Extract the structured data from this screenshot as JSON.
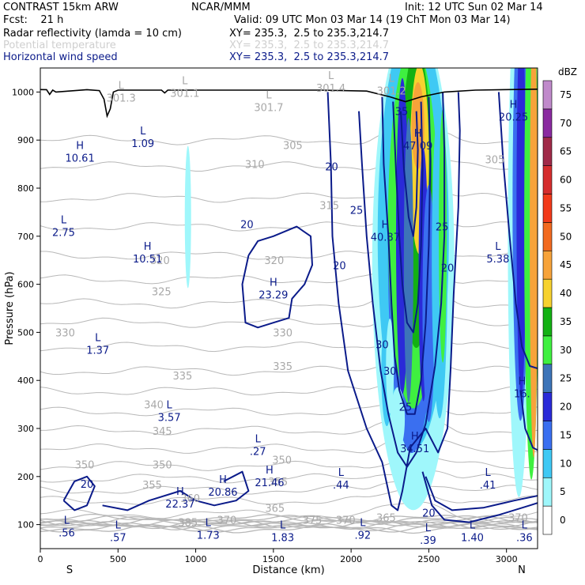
{
  "header": {
    "model": "CONTRAST 15km ARW",
    "org": "NCAR/MMM",
    "init": "Init: 12 UTC Sun 02 Mar 14",
    "fcst": "Fcst:    21 h",
    "valid": "Valid: 09 UTC Mon 03 Mar 14 (19 ChT Mon 03 Mar 14)",
    "field1": "Radar reflectivity (lamda = 10 cm)",
    "field1_xy": "XY= 235.3,  2.5 to 235.3,214.7",
    "field2": "Potential temperature",
    "field2_xy": "XY= 235.3,  2.5 to 235.3,214.7",
    "field3": "Horizontal wind speed",
    "field3_xy": "XY= 235.3,  2.5 to 235.3,214.7"
  },
  "colors": {
    "wind_contour": "#0b1b8a",
    "theta_contour": "#b8b8b8",
    "terrain": "#000000"
  },
  "chart_data": {
    "type": "cross-section",
    "xlabel": "Distance (km)",
    "ylabel": "Pressure (hPa)",
    "xlim": [
      0,
      3200
    ],
    "ylim": [
      1050,
      50
    ],
    "y_log_scale": false,
    "x_ticks": [
      0,
      500,
      1000,
      1500,
      2000,
      2500,
      3000
    ],
    "y_ticks": [
      100,
      200,
      300,
      400,
      500,
      600,
      700,
      800,
      900,
      1000
    ],
    "x_end_labels": {
      "left": "S",
      "right": "N"
    },
    "colorbar": {
      "unit": "dBZ",
      "levels": [
        0,
        5,
        10,
        15,
        20,
        25,
        30,
        35,
        40,
        45,
        50,
        55,
        60,
        65,
        70,
        75
      ],
      "colors": [
        "#ffffff",
        "#9ff7fb",
        "#3fc9f4",
        "#3a6ff0",
        "#2a2ad8",
        "#3d74b8",
        "#3ff040",
        "#13b113",
        "#f7d22f",
        "#f7a33a",
        "#f26a1f",
        "#f23a1a",
        "#d52d2d",
        "#a02a48",
        "#8a2aa0",
        "#c08acb"
      ]
    },
    "wind_speed_labels": [
      {
        "text": "20",
        "x": 300,
        "p": 185
      },
      {
        "text": "20",
        "x": 2500,
        "p": 125
      },
      {
        "text": "25",
        "x": 2350,
        "p": 345
      },
      {
        "text": "30",
        "x": 2250,
        "p": 420
      },
      {
        "text": "30",
        "x": 2200,
        "p": 475
      },
      {
        "text": "20",
        "x": 1925,
        "p": 640
      },
      {
        "text": "20",
        "x": 1330,
        "p": 725
      },
      {
        "text": "25",
        "x": 2035,
        "p": 755
      },
      {
        "text": "20",
        "x": 1875,
        "p": 845
      },
      {
        "text": "20",
        "x": 2620,
        "p": 635
      },
      {
        "text": "25",
        "x": 2585,
        "p": 720
      },
      {
        "text": "35",
        "x": 2325,
        "p": 960
      }
    ],
    "theta_labels": [
      {
        "text": "385",
        "x": 950,
        "p": 105
      },
      {
        "text": "370",
        "x": 1200,
        "p": 110
      },
      {
        "text": "375",
        "x": 1750,
        "p": 110
      },
      {
        "text": "370",
        "x": 1965,
        "p": 110
      },
      {
        "text": "365",
        "x": 2225,
        "p": 115
      },
      {
        "text": "370",
        "x": 3075,
        "p": 115
      },
      {
        "text": "365",
        "x": 1510,
        "p": 135
      },
      {
        "text": "360",
        "x": 965,
        "p": 155
      },
      {
        "text": "355",
        "x": 720,
        "p": 183
      },
      {
        "text": "355",
        "x": 1530,
        "p": 190
      },
      {
        "text": "350",
        "x": 285,
        "p": 225
      },
      {
        "text": "350",
        "x": 785,
        "p": 225
      },
      {
        "text": "350",
        "x": 1555,
        "p": 235
      },
      {
        "text": "345",
        "x": 785,
        "p": 295
      },
      {
        "text": "340",
        "x": 730,
        "p": 350
      },
      {
        "text": "335",
        "x": 915,
        "p": 410
      },
      {
        "text": "335",
        "x": 1560,
        "p": 430
      },
      {
        "text": "330",
        "x": 160,
        "p": 500
      },
      {
        "text": "330",
        "x": 1560,
        "p": 500
      },
      {
        "text": "325",
        "x": 780,
        "p": 585
      },
      {
        "text": "320",
        "x": 770,
        "p": 650
      },
      {
        "text": "320",
        "x": 1505,
        "p": 650
      },
      {
        "text": "315",
        "x": 1860,
        "p": 765
      },
      {
        "text": "310",
        "x": 1380,
        "p": 850
      },
      {
        "text": "305",
        "x": 1625,
        "p": 890
      },
      {
        "text": "305",
        "x": 2925,
        "p": 860
      }
    ],
    "extrema": [
      {
        "type": "L",
        "value": ".56",
        "x": 170,
        "p": 95
      },
      {
        "type": "L",
        "value": ".57",
        "x": 500,
        "p": 85
      },
      {
        "type": "L",
        "value": "1.73",
        "x": 1080,
        "p": 90
      },
      {
        "type": "L",
        "value": "1.83",
        "x": 1560,
        "p": 85
      },
      {
        "type": "L",
        "value": ".92",
        "x": 2075,
        "p": 90
      },
      {
        "type": "L",
        "value": ".39",
        "x": 2495,
        "p": 80
      },
      {
        "type": "L",
        "value": "1.40",
        "x": 2780,
        "p": 85
      },
      {
        "type": "L",
        "value": ".36",
        "x": 3115,
        "p": 85
      },
      {
        "type": "H",
        "value": "22.37",
        "x": 900,
        "p": 155
      },
      {
        "type": "H",
        "value": "20.86",
        "x": 1175,
        "p": 180
      },
      {
        "type": "H",
        "value": "21.46",
        "x": 1475,
        "p": 200
      },
      {
        "type": "L",
        "value": ".44",
        "x": 1935,
        "p": 195
      },
      {
        "type": "L",
        "value": ".41",
        "x": 2880,
        "p": 195
      },
      {
        "type": "H",
        "value": "34.51",
        "x": 2410,
        "p": 270
      },
      {
        "type": "L",
        "value": ".27",
        "x": 1400,
        "p": 265
      },
      {
        "type": "L",
        "value": "3.57",
        "x": 830,
        "p": 335
      },
      {
        "type": "H",
        "value": "16.",
        "x": 3100,
        "p": 385
      },
      {
        "type": "L",
        "value": "1.37",
        "x": 370,
        "p": 475
      },
      {
        "type": "H",
        "value": "23.29",
        "x": 1500,
        "p": 590
      },
      {
        "type": "H",
        "value": "10.51",
        "x": 690,
        "p": 665
      },
      {
        "type": "L",
        "value": "5.38",
        "x": 2945,
        "p": 665
      },
      {
        "type": "H",
        "value": "40.87",
        "x": 2220,
        "p": 710
      },
      {
        "type": "L",
        "value": "2.75",
        "x": 150,
        "p": 720
      },
      {
        "type": "H",
        "value": "10.61",
        "x": 255,
        "p": 875
      },
      {
        "type": "L",
        "value": "1.09",
        "x": 660,
        "p": 905
      },
      {
        "type": "H",
        "value": "47.09",
        "x": 2430,
        "p": 900
      },
      {
        "type": "H",
        "value": "20.25",
        "x": 3045,
        "p": 960
      },
      {
        "type": "L",
        "value": "301.3",
        "x": 520,
        "p": 1000
      },
      {
        "type": "L",
        "value": "301.1",
        "x": 930,
        "p": 1010
      },
      {
        "type": "L",
        "value": "301.7",
        "x": 1470,
        "p": 980
      },
      {
        "type": "L",
        "value": "301.4",
        "x": 1870,
        "p": 1020
      },
      {
        "type": "L",
        "value": "301.2",
        "x": 2260,
        "p": 1015
      }
    ]
  }
}
